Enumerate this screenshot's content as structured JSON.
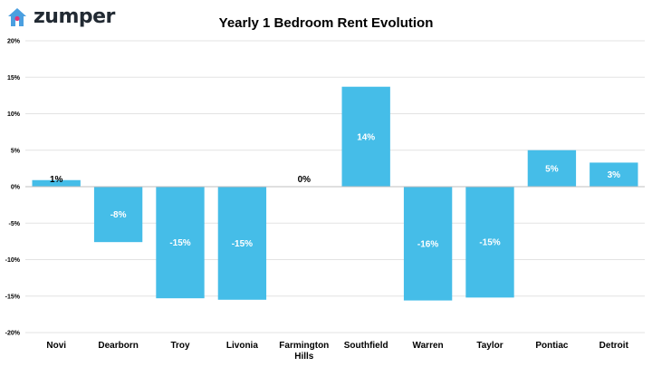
{
  "brand": {
    "name": "zumper",
    "icon": "house-icon",
    "icon_color": "#4a9fe0",
    "dot_color": "#e0357a"
  },
  "chart_data": {
    "type": "bar",
    "title": "Yearly 1 Bedroom Rent Evolution",
    "categories": [
      "Novi",
      "Dearborn",
      "Troy",
      "Livonia",
      "Farmington Hills",
      "Southfield",
      "Warren",
      "Taylor",
      "Pontiac",
      "Detroit"
    ],
    "category_display": [
      [
        "Novi"
      ],
      [
        "Dearborn"
      ],
      [
        "Troy"
      ],
      [
        "Livonia"
      ],
      [
        "Farmington",
        "Hills"
      ],
      [
        "Southfield"
      ],
      [
        "Warren"
      ],
      [
        "Taylor"
      ],
      [
        "Pontiac"
      ],
      [
        "Detroit"
      ]
    ],
    "values": [
      0.9,
      -7.6,
      -15.3,
      -15.5,
      0,
      13.7,
      -15.6,
      -15.2,
      5.0,
      3.3
    ],
    "data_labels": [
      "1%",
      "-8%",
      "-15%",
      "-15%",
      "0%",
      "14%",
      "-16%",
      "-15%",
      "5%",
      "3%"
    ],
    "yticks": [
      20,
      15,
      10,
      5,
      0,
      -5,
      -10,
      -15,
      -20
    ],
    "ytick_labels": [
      "20%",
      "15%",
      "10%",
      "5%",
      "0%",
      "-5%",
      "-10%",
      "-15%",
      "-20%"
    ],
    "ylim": [
      -20,
      20
    ],
    "xlabel": "",
    "ylabel": "",
    "grid": true,
    "bar_color": "#45bde8"
  }
}
